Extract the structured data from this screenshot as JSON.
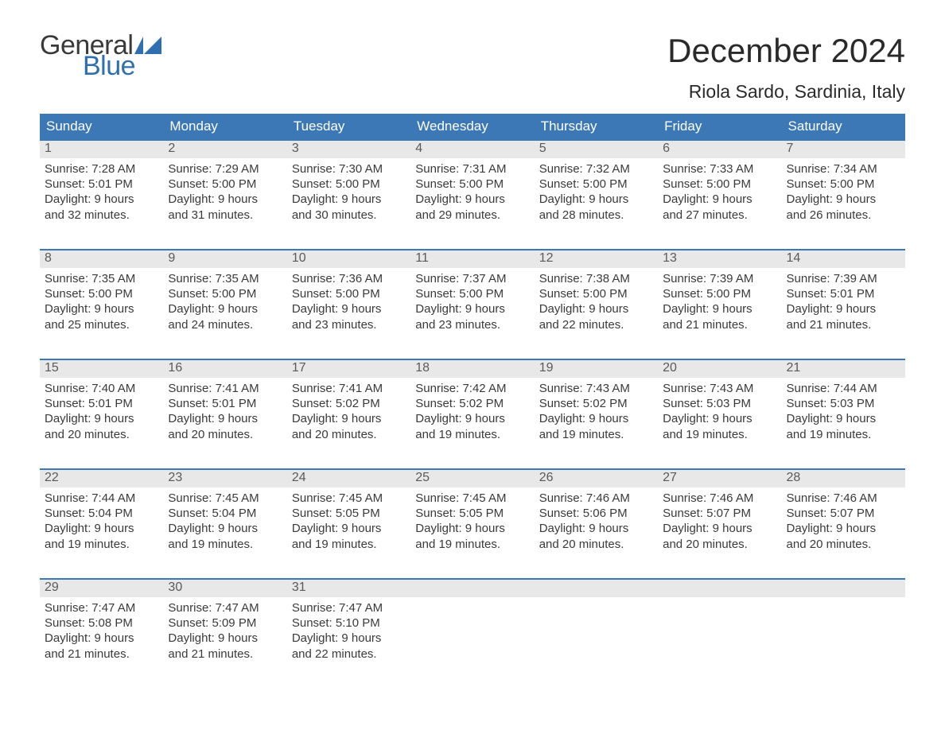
{
  "brand": {
    "text_general": "General",
    "text_blue": "Blue",
    "flag_color": "#2f6fb0",
    "text_color_dark": "#3a3a3a"
  },
  "title": "December 2024",
  "location": "Riola Sardo, Sardinia, Italy",
  "colors": {
    "header_bg": "#3b78b5",
    "header_text": "#ffffff",
    "day_num_bg": "#e8e8e8",
    "day_num_text": "#5a5a5a",
    "body_text": "#3a3a3a",
    "week_border": "#3b78b5",
    "page_bg": "#ffffff"
  },
  "typography": {
    "body_font": "Arial",
    "title_fontsize": 42,
    "location_fontsize": 23,
    "dow_fontsize": 17,
    "daynum_fontsize": 16,
    "info_fontsize": 15
  },
  "day_headers": [
    "Sunday",
    "Monday",
    "Tuesday",
    "Wednesday",
    "Thursday",
    "Friday",
    "Saturday"
  ],
  "weeks": [
    [
      {
        "num": "1",
        "sunrise": "Sunrise: 7:28 AM",
        "sunset": "Sunset: 5:01 PM",
        "d1": "Daylight: 9 hours",
        "d2": "and 32 minutes."
      },
      {
        "num": "2",
        "sunrise": "Sunrise: 7:29 AM",
        "sunset": "Sunset: 5:00 PM",
        "d1": "Daylight: 9 hours",
        "d2": "and 31 minutes."
      },
      {
        "num": "3",
        "sunrise": "Sunrise: 7:30 AM",
        "sunset": "Sunset: 5:00 PM",
        "d1": "Daylight: 9 hours",
        "d2": "and 30 minutes."
      },
      {
        "num": "4",
        "sunrise": "Sunrise: 7:31 AM",
        "sunset": "Sunset: 5:00 PM",
        "d1": "Daylight: 9 hours",
        "d2": "and 29 minutes."
      },
      {
        "num": "5",
        "sunrise": "Sunrise: 7:32 AM",
        "sunset": "Sunset: 5:00 PM",
        "d1": "Daylight: 9 hours",
        "d2": "and 28 minutes."
      },
      {
        "num": "6",
        "sunrise": "Sunrise: 7:33 AM",
        "sunset": "Sunset: 5:00 PM",
        "d1": "Daylight: 9 hours",
        "d2": "and 27 minutes."
      },
      {
        "num": "7",
        "sunrise": "Sunrise: 7:34 AM",
        "sunset": "Sunset: 5:00 PM",
        "d1": "Daylight: 9 hours",
        "d2": "and 26 minutes."
      }
    ],
    [
      {
        "num": "8",
        "sunrise": "Sunrise: 7:35 AM",
        "sunset": "Sunset: 5:00 PM",
        "d1": "Daylight: 9 hours",
        "d2": "and 25 minutes."
      },
      {
        "num": "9",
        "sunrise": "Sunrise: 7:35 AM",
        "sunset": "Sunset: 5:00 PM",
        "d1": "Daylight: 9 hours",
        "d2": "and 24 minutes."
      },
      {
        "num": "10",
        "sunrise": "Sunrise: 7:36 AM",
        "sunset": "Sunset: 5:00 PM",
        "d1": "Daylight: 9 hours",
        "d2": "and 23 minutes."
      },
      {
        "num": "11",
        "sunrise": "Sunrise: 7:37 AM",
        "sunset": "Sunset: 5:00 PM",
        "d1": "Daylight: 9 hours",
        "d2": "and 23 minutes."
      },
      {
        "num": "12",
        "sunrise": "Sunrise: 7:38 AM",
        "sunset": "Sunset: 5:00 PM",
        "d1": "Daylight: 9 hours",
        "d2": "and 22 minutes."
      },
      {
        "num": "13",
        "sunrise": "Sunrise: 7:39 AM",
        "sunset": "Sunset: 5:00 PM",
        "d1": "Daylight: 9 hours",
        "d2": "and 21 minutes."
      },
      {
        "num": "14",
        "sunrise": "Sunrise: 7:39 AM",
        "sunset": "Sunset: 5:01 PM",
        "d1": "Daylight: 9 hours",
        "d2": "and 21 minutes."
      }
    ],
    [
      {
        "num": "15",
        "sunrise": "Sunrise: 7:40 AM",
        "sunset": "Sunset: 5:01 PM",
        "d1": "Daylight: 9 hours",
        "d2": "and 20 minutes."
      },
      {
        "num": "16",
        "sunrise": "Sunrise: 7:41 AM",
        "sunset": "Sunset: 5:01 PM",
        "d1": "Daylight: 9 hours",
        "d2": "and 20 minutes."
      },
      {
        "num": "17",
        "sunrise": "Sunrise: 7:41 AM",
        "sunset": "Sunset: 5:02 PM",
        "d1": "Daylight: 9 hours",
        "d2": "and 20 minutes."
      },
      {
        "num": "18",
        "sunrise": "Sunrise: 7:42 AM",
        "sunset": "Sunset: 5:02 PM",
        "d1": "Daylight: 9 hours",
        "d2": "and 19 minutes."
      },
      {
        "num": "19",
        "sunrise": "Sunrise: 7:43 AM",
        "sunset": "Sunset: 5:02 PM",
        "d1": "Daylight: 9 hours",
        "d2": "and 19 minutes."
      },
      {
        "num": "20",
        "sunrise": "Sunrise: 7:43 AM",
        "sunset": "Sunset: 5:03 PM",
        "d1": "Daylight: 9 hours",
        "d2": "and 19 minutes."
      },
      {
        "num": "21",
        "sunrise": "Sunrise: 7:44 AM",
        "sunset": "Sunset: 5:03 PM",
        "d1": "Daylight: 9 hours",
        "d2": "and 19 minutes."
      }
    ],
    [
      {
        "num": "22",
        "sunrise": "Sunrise: 7:44 AM",
        "sunset": "Sunset: 5:04 PM",
        "d1": "Daylight: 9 hours",
        "d2": "and 19 minutes."
      },
      {
        "num": "23",
        "sunrise": "Sunrise: 7:45 AM",
        "sunset": "Sunset: 5:04 PM",
        "d1": "Daylight: 9 hours",
        "d2": "and 19 minutes."
      },
      {
        "num": "24",
        "sunrise": "Sunrise: 7:45 AM",
        "sunset": "Sunset: 5:05 PM",
        "d1": "Daylight: 9 hours",
        "d2": "and 19 minutes."
      },
      {
        "num": "25",
        "sunrise": "Sunrise: 7:45 AM",
        "sunset": "Sunset: 5:05 PM",
        "d1": "Daylight: 9 hours",
        "d2": "and 19 minutes."
      },
      {
        "num": "26",
        "sunrise": "Sunrise: 7:46 AM",
        "sunset": "Sunset: 5:06 PM",
        "d1": "Daylight: 9 hours",
        "d2": "and 20 minutes."
      },
      {
        "num": "27",
        "sunrise": "Sunrise: 7:46 AM",
        "sunset": "Sunset: 5:07 PM",
        "d1": "Daylight: 9 hours",
        "d2": "and 20 minutes."
      },
      {
        "num": "28",
        "sunrise": "Sunrise: 7:46 AM",
        "sunset": "Sunset: 5:07 PM",
        "d1": "Daylight: 9 hours",
        "d2": "and 20 minutes."
      }
    ],
    [
      {
        "num": "29",
        "sunrise": "Sunrise: 7:47 AM",
        "sunset": "Sunset: 5:08 PM",
        "d1": "Daylight: 9 hours",
        "d2": "and 21 minutes."
      },
      {
        "num": "30",
        "sunrise": "Sunrise: 7:47 AM",
        "sunset": "Sunset: 5:09 PM",
        "d1": "Daylight: 9 hours",
        "d2": "and 21 minutes."
      },
      {
        "num": "31",
        "sunrise": "Sunrise: 7:47 AM",
        "sunset": "Sunset: 5:10 PM",
        "d1": "Daylight: 9 hours",
        "d2": "and 22 minutes."
      },
      {
        "num": "",
        "sunrise": "",
        "sunset": "",
        "d1": "",
        "d2": ""
      },
      {
        "num": "",
        "sunrise": "",
        "sunset": "",
        "d1": "",
        "d2": ""
      },
      {
        "num": "",
        "sunrise": "",
        "sunset": "",
        "d1": "",
        "d2": ""
      },
      {
        "num": "",
        "sunrise": "",
        "sunset": "",
        "d1": "",
        "d2": ""
      }
    ]
  ]
}
